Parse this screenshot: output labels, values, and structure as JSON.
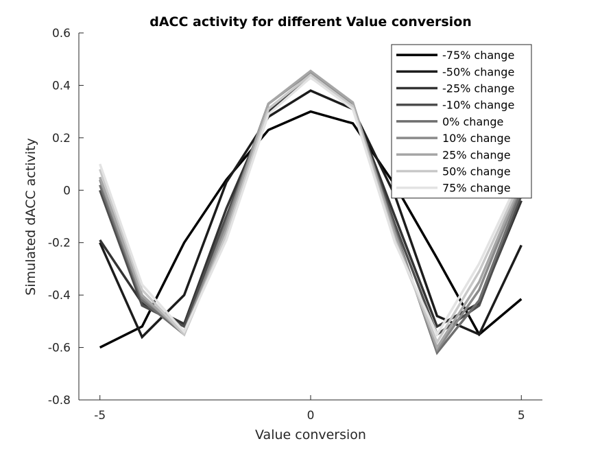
{
  "chart_data": {
    "type": "line",
    "title": "dACC activity for different Value conversion",
    "xlabel": "Value conversion",
    "ylabel": "Simulated dACC activity",
    "xlim": [
      -5.5,
      5.5
    ],
    "ylim": [
      -0.8,
      0.6
    ],
    "xticks": [
      -5,
      0,
      5
    ],
    "xtick_labels": [
      "-5",
      "0",
      "5"
    ],
    "yticks": [
      -0.8,
      -0.6,
      -0.4,
      -0.2,
      0,
      0.2,
      0.4,
      0.6
    ],
    "ytick_labels": [
      "-0.8",
      "-0.6",
      "-0.4",
      "-0.2",
      "0",
      "0.2",
      "0.4",
      "0.6"
    ],
    "grid": false,
    "legend_position": "top-right",
    "x": [
      -5,
      -4,
      -3,
      -2,
      -1,
      0,
      1,
      2,
      3,
      4,
      5
    ],
    "series": [
      {
        "name": "-75% change",
        "color": "#000000",
        "values": [
          -0.6,
          -0.52,
          -0.2,
          0.04,
          0.23,
          0.3,
          0.255,
          0.02,
          -0.26,
          -0.55,
          -0.415
        ]
      },
      {
        "name": "-50% change",
        "color": "#1c1c1c",
        "values": [
          -0.2,
          -0.56,
          -0.4,
          0.03,
          0.28,
          0.38,
          0.31,
          -0.02,
          -0.48,
          -0.55,
          -0.21
        ]
      },
      {
        "name": "-25% change",
        "color": "#333333",
        "values": [
          -0.19,
          -0.43,
          -0.51,
          -0.07,
          0.3,
          0.43,
          0.32,
          -0.1,
          -0.52,
          -0.43,
          -0.04
        ]
      },
      {
        "name": "-10% change",
        "color": "#4d4d4d",
        "values": [
          0.0,
          -0.44,
          -0.52,
          -0.1,
          0.31,
          0.44,
          0.32,
          -0.13,
          -0.55,
          -0.44,
          -0.02
        ]
      },
      {
        "name": "0% change",
        "color": "#6e6e6e",
        "values": [
          0.02,
          -0.42,
          -0.55,
          -0.12,
          0.33,
          0.45,
          0.33,
          -0.15,
          -0.62,
          -0.42,
          0.0
        ]
      },
      {
        "name": "10% change",
        "color": "#8a8a8a",
        "values": [
          0.04,
          -0.41,
          -0.54,
          -0.13,
          0.33,
          0.45,
          0.33,
          -0.16,
          -0.61,
          -0.38,
          0.02
        ]
      },
      {
        "name": "25% change",
        "color": "#a6a6a6",
        "values": [
          0.05,
          -0.4,
          -0.55,
          -0.15,
          0.33,
          0.455,
          0.335,
          -0.17,
          -0.6,
          -0.35,
          0.03
        ]
      },
      {
        "name": "50% change",
        "color": "#c8c8c8",
        "values": [
          0.08,
          -0.38,
          -0.55,
          -0.17,
          0.31,
          0.44,
          0.32,
          -0.19,
          -0.58,
          -0.31,
          0.04
        ]
      },
      {
        "name": "75% change",
        "color": "#e3e3e3",
        "values": [
          0.1,
          -0.36,
          -0.54,
          -0.19,
          0.29,
          0.43,
          0.31,
          -0.2,
          -0.55,
          -0.28,
          0.06
        ]
      }
    ]
  }
}
